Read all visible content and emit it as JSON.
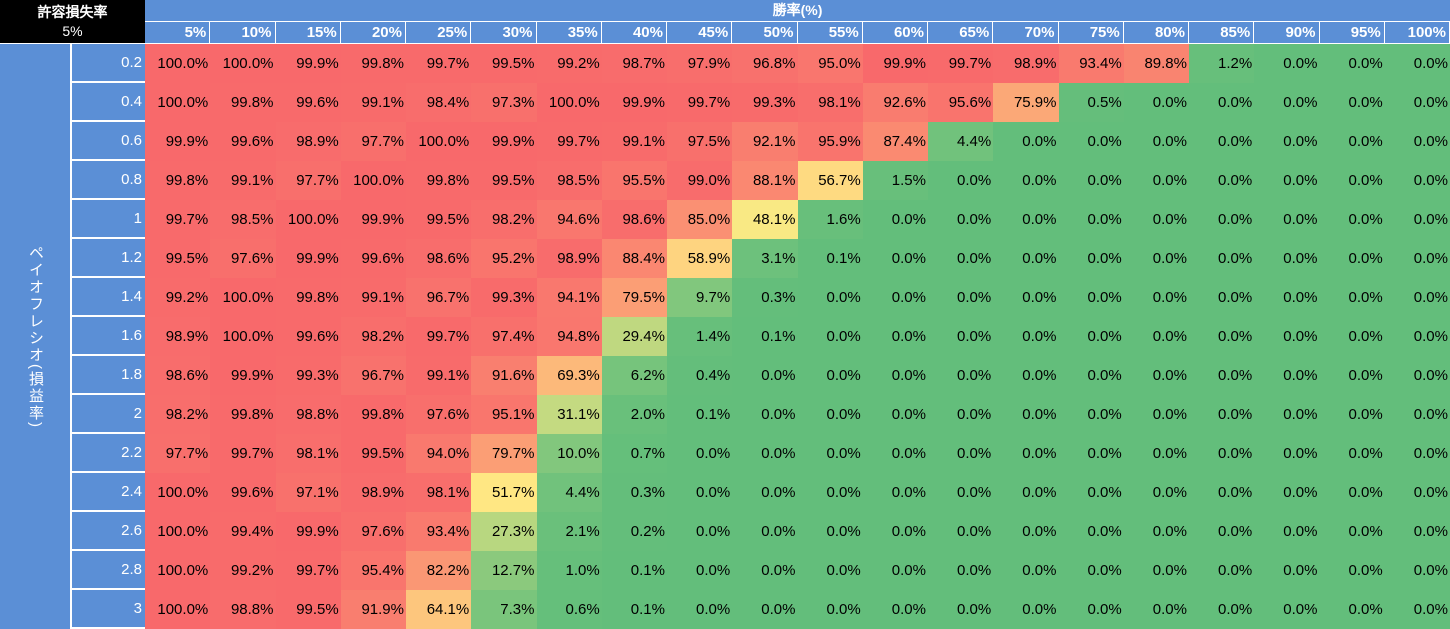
{
  "corner": {
    "title": "許容損失率",
    "value": "5%"
  },
  "chart_data": {
    "type": "heatmap",
    "col_axis_label": "勝率(%)",
    "row_axis_label": "ペイオフレシオ(損益率)",
    "columns": [
      "5%",
      "10%",
      "15%",
      "20%",
      "25%",
      "30%",
      "35%",
      "40%",
      "45%",
      "50%",
      "55%",
      "60%",
      "65%",
      "70%",
      "75%",
      "80%",
      "85%",
      "90%",
      "95%",
      "100%"
    ],
    "rows": [
      "0.2",
      "0.4",
      "0.6",
      "0.8",
      "1",
      "1.2",
      "1.4",
      "1.6",
      "1.8",
      "2",
      "2.2",
      "2.4",
      "2.6",
      "2.8",
      "3"
    ],
    "values": [
      [
        "100.0%",
        "100.0%",
        "99.9%",
        "99.8%",
        "99.7%",
        "99.5%",
        "99.2%",
        "98.7%",
        "97.9%",
        "96.8%",
        "95.0%",
        "99.9%",
        "99.7%",
        "98.9%",
        "93.4%",
        "89.8%",
        "1.2%",
        "0.0%",
        "0.0%",
        "0.0%"
      ],
      [
        "100.0%",
        "99.8%",
        "99.6%",
        "99.1%",
        "98.4%",
        "97.3%",
        "100.0%",
        "99.9%",
        "99.7%",
        "99.3%",
        "98.1%",
        "92.6%",
        "95.6%",
        "75.9%",
        "0.5%",
        "0.0%",
        "0.0%",
        "0.0%",
        "0.0%",
        "0.0%"
      ],
      [
        "99.9%",
        "99.6%",
        "98.9%",
        "97.7%",
        "100.0%",
        "99.9%",
        "99.7%",
        "99.1%",
        "97.5%",
        "92.1%",
        "95.9%",
        "87.4%",
        "4.4%",
        "0.0%",
        "0.0%",
        "0.0%",
        "0.0%",
        "0.0%",
        "0.0%",
        "0.0%"
      ],
      [
        "99.8%",
        "99.1%",
        "97.7%",
        "100.0%",
        "99.8%",
        "99.5%",
        "98.5%",
        "95.5%",
        "99.0%",
        "88.1%",
        "56.7%",
        "1.5%",
        "0.0%",
        "0.0%",
        "0.0%",
        "0.0%",
        "0.0%",
        "0.0%",
        "0.0%",
        "0.0%"
      ],
      [
        "99.7%",
        "98.5%",
        "100.0%",
        "99.9%",
        "99.5%",
        "98.2%",
        "94.6%",
        "98.6%",
        "85.0%",
        "48.1%",
        "1.6%",
        "0.0%",
        "0.0%",
        "0.0%",
        "0.0%",
        "0.0%",
        "0.0%",
        "0.0%",
        "0.0%",
        "0.0%"
      ],
      [
        "99.5%",
        "97.6%",
        "99.9%",
        "99.6%",
        "98.6%",
        "95.2%",
        "98.9%",
        "88.4%",
        "58.9%",
        "3.1%",
        "0.1%",
        "0.0%",
        "0.0%",
        "0.0%",
        "0.0%",
        "0.0%",
        "0.0%",
        "0.0%",
        "0.0%",
        "0.0%"
      ],
      [
        "99.2%",
        "100.0%",
        "99.8%",
        "99.1%",
        "96.7%",
        "99.3%",
        "94.1%",
        "79.5%",
        "9.7%",
        "0.3%",
        "0.0%",
        "0.0%",
        "0.0%",
        "0.0%",
        "0.0%",
        "0.0%",
        "0.0%",
        "0.0%",
        "0.0%",
        "0.0%"
      ],
      [
        "98.9%",
        "100.0%",
        "99.6%",
        "98.2%",
        "99.7%",
        "97.4%",
        "94.8%",
        "29.4%",
        "1.4%",
        "0.1%",
        "0.0%",
        "0.0%",
        "0.0%",
        "0.0%",
        "0.0%",
        "0.0%",
        "0.0%",
        "0.0%",
        "0.0%",
        "0.0%"
      ],
      [
        "98.6%",
        "99.9%",
        "99.3%",
        "96.7%",
        "99.1%",
        "91.6%",
        "69.3%",
        "6.2%",
        "0.4%",
        "0.0%",
        "0.0%",
        "0.0%",
        "0.0%",
        "0.0%",
        "0.0%",
        "0.0%",
        "0.0%",
        "0.0%",
        "0.0%",
        "0.0%"
      ],
      [
        "98.2%",
        "99.8%",
        "98.8%",
        "99.8%",
        "97.6%",
        "95.1%",
        "31.1%",
        "2.0%",
        "0.1%",
        "0.0%",
        "0.0%",
        "0.0%",
        "0.0%",
        "0.0%",
        "0.0%",
        "0.0%",
        "0.0%",
        "0.0%",
        "0.0%",
        "0.0%"
      ],
      [
        "97.7%",
        "99.7%",
        "98.1%",
        "99.5%",
        "94.0%",
        "79.7%",
        "10.0%",
        "0.7%",
        "0.0%",
        "0.0%",
        "0.0%",
        "0.0%",
        "0.0%",
        "0.0%",
        "0.0%",
        "0.0%",
        "0.0%",
        "0.0%",
        "0.0%",
        "0.0%"
      ],
      [
        "100.0%",
        "99.6%",
        "97.1%",
        "98.9%",
        "98.1%",
        "51.7%",
        "4.4%",
        "0.3%",
        "0.0%",
        "0.0%",
        "0.0%",
        "0.0%",
        "0.0%",
        "0.0%",
        "0.0%",
        "0.0%",
        "0.0%",
        "0.0%",
        "0.0%",
        "0.0%"
      ],
      [
        "100.0%",
        "99.4%",
        "99.9%",
        "97.6%",
        "93.4%",
        "27.3%",
        "2.1%",
        "0.2%",
        "0.0%",
        "0.0%",
        "0.0%",
        "0.0%",
        "0.0%",
        "0.0%",
        "0.0%",
        "0.0%",
        "0.0%",
        "0.0%",
        "0.0%",
        "0.0%"
      ],
      [
        "100.0%",
        "99.2%",
        "99.7%",
        "95.4%",
        "82.2%",
        "12.7%",
        "1.0%",
        "0.1%",
        "0.0%",
        "0.0%",
        "0.0%",
        "0.0%",
        "0.0%",
        "0.0%",
        "0.0%",
        "0.0%",
        "0.0%",
        "0.0%",
        "0.0%",
        "0.0%"
      ],
      [
        "100.0%",
        "98.8%",
        "99.5%",
        "91.9%",
        "64.1%",
        "7.3%",
        "0.6%",
        "0.1%",
        "0.0%",
        "0.0%",
        "0.0%",
        "0.0%",
        "0.0%",
        "0.0%",
        "0.0%",
        "0.0%",
        "0.0%",
        "0.0%",
        "0.0%",
        "0.0%"
      ]
    ],
    "color_scale": {
      "high": "#f8696b",
      "mid": "#ffeb84",
      "low": "#63be7b"
    }
  }
}
